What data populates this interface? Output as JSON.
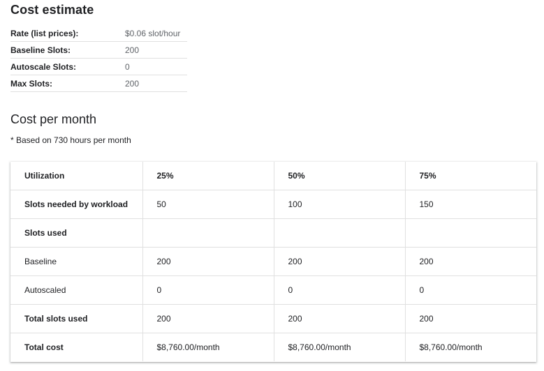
{
  "title": "Cost estimate",
  "summary": [
    {
      "label": "Rate (list prices):",
      "value": "$0.06 slot/hour"
    },
    {
      "label": "Baseline Slots:",
      "value": "200"
    },
    {
      "label": "Autoscale Slots:",
      "value": "0"
    },
    {
      "label": "Max Slots:",
      "value": "200"
    }
  ],
  "cost_section": {
    "title": "Cost per month",
    "note": "* Based on 730 hours per month"
  },
  "table": {
    "rows": [
      {
        "cells": [
          "Utilization",
          "25%",
          "50%",
          "75%"
        ],
        "bold_all": true
      },
      {
        "cells": [
          "Slots needed by workload",
          "50",
          "100",
          "150"
        ]
      },
      {
        "cells": [
          "Slots used",
          "",
          "",
          ""
        ]
      },
      {
        "cells": [
          "Baseline",
          "200",
          "200",
          "200"
        ],
        "normal_label": true
      },
      {
        "cells": [
          "Autoscaled",
          "0",
          "0",
          "0"
        ],
        "normal_label": true
      },
      {
        "cells": [
          "Total slots used",
          "200",
          "200",
          "200"
        ]
      },
      {
        "cells": [
          "Total cost",
          "$8,760.00/month",
          "$8,760.00/month",
          "$8,760.00/month"
        ]
      }
    ]
  }
}
